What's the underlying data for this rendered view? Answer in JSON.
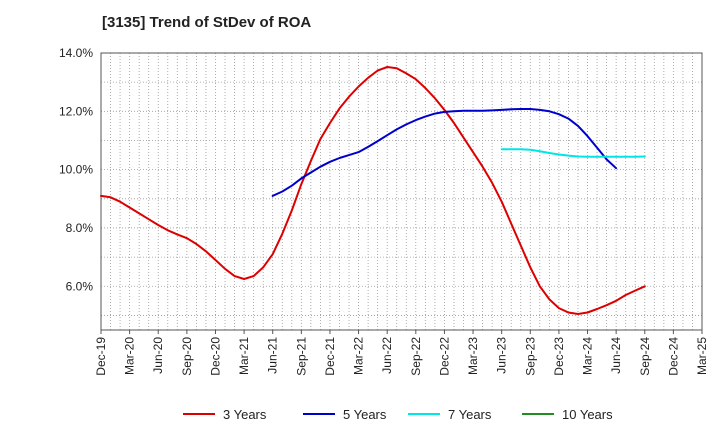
{
  "chart_data": {
    "type": "line",
    "title": "[3135]  Trend of StDev of ROA",
    "xlabel": "",
    "ylabel": "",
    "ylim": [
      4.5,
      14.0
    ],
    "y_ticks": [
      14.0,
      12.0,
      10.0,
      8.0,
      6.0
    ],
    "y_tick_labels": [
      "14.0%",
      "12.0%",
      "10.0%",
      "8.0%",
      "6.0%"
    ],
    "x_tick_labels": [
      "Dec-19",
      "Mar-20",
      "Jun-20",
      "Sep-20",
      "Dec-20",
      "Mar-21",
      "Jun-21",
      "Sep-21",
      "Dec-21",
      "Mar-22",
      "Jun-22",
      "Sep-22",
      "Dec-22",
      "Mar-23",
      "Jun-23",
      "Sep-23",
      "Dec-23",
      "Mar-24",
      "Jun-24",
      "Sep-24",
      "Dec-24",
      "Mar-25"
    ],
    "grid": true,
    "legend_position": "bottom",
    "series": [
      {
        "name": "3 Years",
        "color": "#dd0000",
        "points": [
          [
            "Dec-19",
            9.1
          ],
          [
            "Jan-20",
            9.05
          ],
          [
            "Feb-20",
            8.9
          ],
          [
            "Mar-20",
            8.7
          ],
          [
            "Apr-20",
            8.5
          ],
          [
            "May-20",
            8.3
          ],
          [
            "Jun-20",
            8.1
          ],
          [
            "Jul-20",
            7.92
          ],
          [
            "Aug-20",
            7.78
          ],
          [
            "Sep-20",
            7.65
          ],
          [
            "Oct-20",
            7.45
          ],
          [
            "Nov-20",
            7.2
          ],
          [
            "Dec-20",
            6.9
          ],
          [
            "Jan-21",
            6.6
          ],
          [
            "Feb-21",
            6.35
          ],
          [
            "Mar-21",
            6.25
          ],
          [
            "Apr-21",
            6.35
          ],
          [
            "May-21",
            6.65
          ],
          [
            "Jun-21",
            7.1
          ],
          [
            "Jul-21",
            7.8
          ],
          [
            "Aug-21",
            8.6
          ],
          [
            "Sep-21",
            9.5
          ],
          [
            "Oct-21",
            10.3
          ],
          [
            "Nov-21",
            11.05
          ],
          [
            "Dec-21",
            11.6
          ],
          [
            "Jan-22",
            12.1
          ],
          [
            "Feb-22",
            12.5
          ],
          [
            "Mar-22",
            12.85
          ],
          [
            "Apr-22",
            13.15
          ],
          [
            "May-22",
            13.4
          ],
          [
            "Jun-22",
            13.52
          ],
          [
            "Jul-22",
            13.48
          ],
          [
            "Aug-22",
            13.3
          ],
          [
            "Sep-22",
            13.1
          ],
          [
            "Oct-22",
            12.8
          ],
          [
            "Nov-22",
            12.45
          ],
          [
            "Dec-22",
            12.05
          ],
          [
            "Jan-23",
            11.6
          ],
          [
            "Feb-23",
            11.1
          ],
          [
            "Mar-23",
            10.6
          ],
          [
            "Apr-23",
            10.1
          ],
          [
            "May-23",
            9.55
          ],
          [
            "Jun-23",
            8.9
          ],
          [
            "Jul-23",
            8.15
          ],
          [
            "Aug-23",
            7.4
          ],
          [
            "Sep-23",
            6.65
          ],
          [
            "Oct-23",
            6.0
          ],
          [
            "Nov-23",
            5.55
          ],
          [
            "Dec-23",
            5.25
          ],
          [
            "Jan-24",
            5.1
          ],
          [
            "Feb-24",
            5.05
          ],
          [
            "Mar-24",
            5.1
          ],
          [
            "Apr-24",
            5.22
          ],
          [
            "May-24",
            5.35
          ],
          [
            "Jun-24",
            5.5
          ],
          [
            "Jul-24",
            5.7
          ],
          [
            "Aug-24",
            5.85
          ],
          [
            "Sep-24",
            6.0
          ]
        ]
      },
      {
        "name": "5 Years",
        "color": "#0000cc",
        "points": [
          [
            "Jun-21",
            9.1
          ],
          [
            "Jul-21",
            9.25
          ],
          [
            "Aug-21",
            9.45
          ],
          [
            "Sep-21",
            9.7
          ],
          [
            "Oct-21",
            9.9
          ],
          [
            "Nov-21",
            10.1
          ],
          [
            "Dec-21",
            10.27
          ],
          [
            "Jan-22",
            10.4
          ],
          [
            "Feb-22",
            10.5
          ],
          [
            "Mar-22",
            10.6
          ],
          [
            "Apr-22",
            10.78
          ],
          [
            "May-22",
            10.98
          ],
          [
            "Jun-22",
            11.18
          ],
          [
            "Jul-22",
            11.38
          ],
          [
            "Aug-22",
            11.55
          ],
          [
            "Sep-22",
            11.7
          ],
          [
            "Oct-22",
            11.82
          ],
          [
            "Nov-22",
            11.92
          ],
          [
            "Dec-22",
            11.98
          ],
          [
            "Jan-23",
            12.0
          ],
          [
            "Feb-23",
            12.02
          ],
          [
            "Mar-23",
            12.02
          ],
          [
            "Apr-23",
            12.02
          ],
          [
            "May-23",
            12.03
          ],
          [
            "Jun-23",
            12.05
          ],
          [
            "Jul-23",
            12.07
          ],
          [
            "Aug-23",
            12.08
          ],
          [
            "Sep-23",
            12.08
          ],
          [
            "Oct-23",
            12.05
          ],
          [
            "Nov-23",
            12.0
          ],
          [
            "Dec-23",
            11.9
          ],
          [
            "Jan-24",
            11.75
          ],
          [
            "Feb-24",
            11.5
          ],
          [
            "Mar-24",
            11.15
          ],
          [
            "Apr-24",
            10.75
          ],
          [
            "May-24",
            10.35
          ],
          [
            "Jun-24",
            10.05
          ]
        ]
      },
      {
        "name": "7 Years",
        "color": "#00e5e5",
        "points": [
          [
            "Jun-23",
            10.7
          ],
          [
            "Jul-23",
            10.7
          ],
          [
            "Aug-23",
            10.7
          ],
          [
            "Sep-23",
            10.68
          ],
          [
            "Oct-23",
            10.63
          ],
          [
            "Nov-23",
            10.57
          ],
          [
            "Dec-23",
            10.52
          ],
          [
            "Jan-24",
            10.48
          ],
          [
            "Feb-24",
            10.45
          ],
          [
            "Mar-24",
            10.44
          ],
          [
            "Apr-24",
            10.44
          ],
          [
            "May-24",
            10.44
          ],
          [
            "Jun-24",
            10.44
          ],
          [
            "Jul-24",
            10.44
          ],
          [
            "Aug-24",
            10.44
          ],
          [
            "Sep-24",
            10.45
          ]
        ]
      },
      {
        "name": "10 Years",
        "color": "#228b22",
        "points": []
      }
    ]
  }
}
